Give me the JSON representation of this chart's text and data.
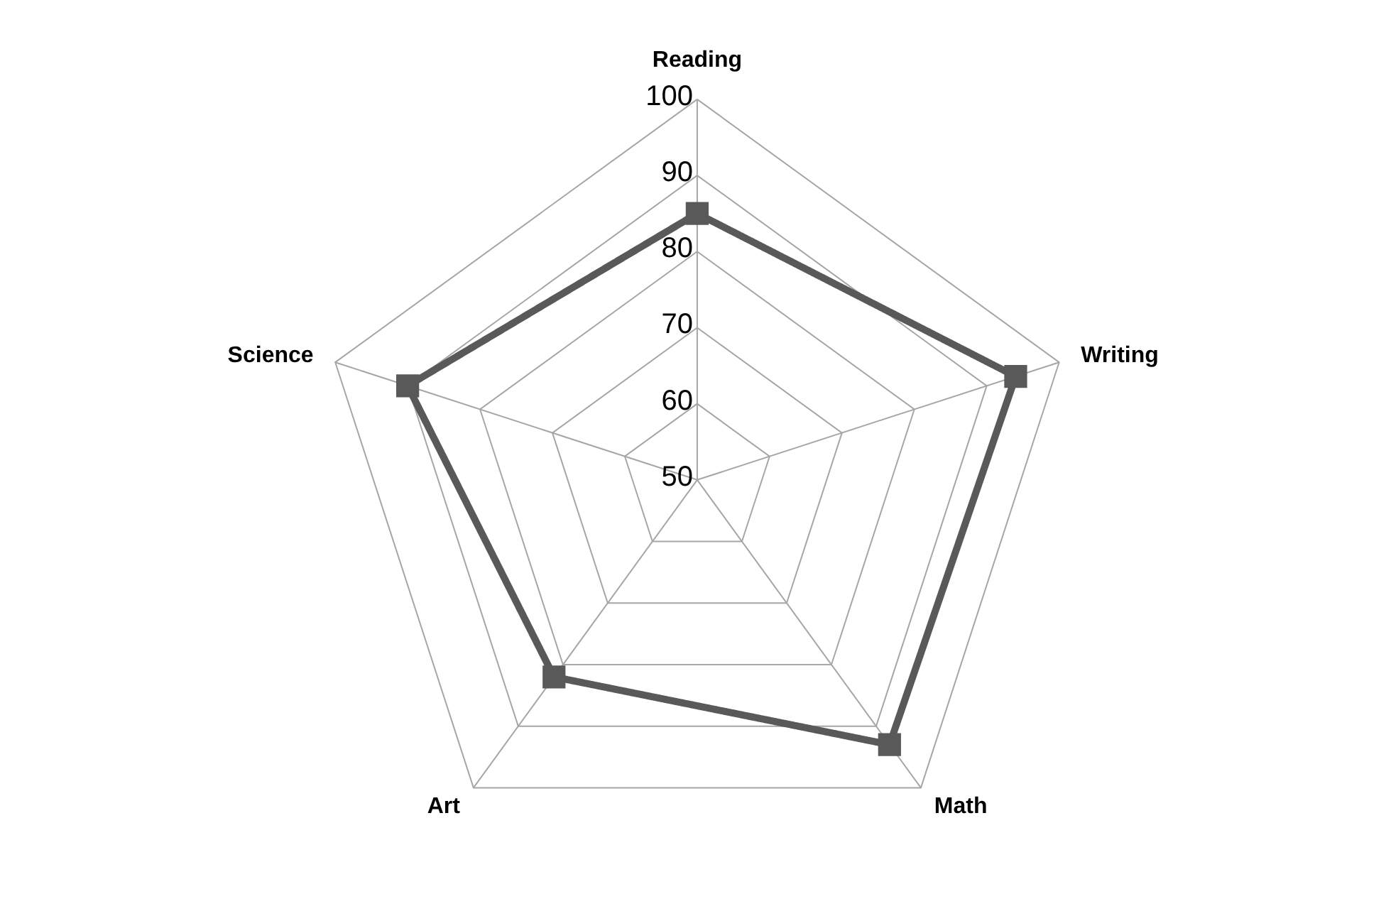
{
  "chart_data": {
    "type": "radar",
    "categories": [
      "Reading",
      "Writing",
      "Math",
      "Art",
      "Science"
    ],
    "series": [
      {
        "color": "#595959",
        "values": [
          85,
          94,
          93,
          82,
          90
        ]
      }
    ],
    "ylim": [
      50,
      100
    ],
    "yticks": [
      50,
      60,
      70,
      80,
      90,
      100
    ],
    "marker": "square",
    "line_style": "solid",
    "grid": true
  }
}
